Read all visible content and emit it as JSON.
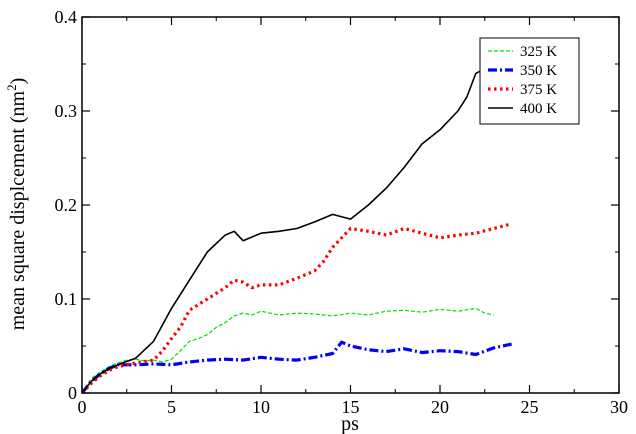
{
  "chart_data": {
    "type": "line",
    "xlabel": "ps",
    "ylabel": "mean square displcement (nm",
    "ylabel_sup": "2",
    "ylabel_close": ")",
    "xlim": [
      0,
      30
    ],
    "ylim": [
      0,
      0.4
    ],
    "x_ticks": [
      0,
      5,
      10,
      15,
      20,
      25,
      30
    ],
    "y_ticks": [
      0,
      0.1,
      0.2,
      0.3,
      0.4
    ],
    "x_tick_labels": [
      "0",
      "5",
      "10",
      "15",
      "20",
      "25",
      "30"
    ],
    "y_tick_labels": [
      "0",
      "0.1",
      "0.2",
      "0.3",
      "0.4"
    ],
    "grid": false,
    "legend_position": "top-right",
    "series": [
      {
        "name": "325 K",
        "color": "#00e000",
        "style": "dashed-thin",
        "x": [
          0,
          0.5,
          1,
          1.5,
          2,
          2.5,
          3,
          3.5,
          4,
          4.5,
          5,
          5.5,
          6,
          6.5,
          7,
          7.5,
          8,
          8.5,
          9,
          9.5,
          10,
          11,
          12,
          13,
          14,
          15,
          16,
          17,
          18,
          19,
          20,
          21,
          22,
          22.5,
          23
        ],
        "y": [
          0,
          0.015,
          0.022,
          0.028,
          0.032,
          0.035,
          0.036,
          0.034,
          0.035,
          0.033,
          0.036,
          0.045,
          0.055,
          0.058,
          0.062,
          0.07,
          0.075,
          0.082,
          0.085,
          0.083,
          0.087,
          0.083,
          0.085,
          0.084,
          0.082,
          0.085,
          0.083,
          0.087,
          0.088,
          0.086,
          0.089,
          0.087,
          0.09,
          0.085,
          0.083
        ]
      },
      {
        "name": "350 K",
        "color": "#0000ff",
        "style": "dashdot-thick",
        "x": [
          0,
          0.5,
          1,
          1.5,
          2,
          3,
          4,
          5,
          6,
          7,
          8,
          9,
          10,
          11,
          12,
          13,
          14,
          14.5,
          15,
          16,
          17,
          18,
          19,
          20,
          21,
          22,
          23,
          24
        ],
        "y": [
          0,
          0.012,
          0.02,
          0.026,
          0.03,
          0.03,
          0.031,
          0.03,
          0.033,
          0.035,
          0.036,
          0.035,
          0.038,
          0.036,
          0.035,
          0.038,
          0.042,
          0.054,
          0.05,
          0.046,
          0.044,
          0.047,
          0.043,
          0.045,
          0.044,
          0.041,
          0.048,
          0.052
        ]
      },
      {
        "name": "375 K",
        "color": "#ff0000",
        "style": "dotted-thick",
        "x": [
          0,
          0.5,
          1,
          1.5,
          2,
          3,
          4,
          4.5,
          5,
          5.5,
          6,
          7,
          8,
          8.5,
          9,
          9.5,
          10,
          11,
          12,
          13,
          13.5,
          14,
          14.5,
          15,
          16,
          17,
          18,
          19,
          20,
          21,
          22,
          23,
          24
        ],
        "y": [
          0,
          0.01,
          0.018,
          0.024,
          0.028,
          0.032,
          0.035,
          0.045,
          0.058,
          0.07,
          0.088,
          0.1,
          0.112,
          0.12,
          0.118,
          0.112,
          0.115,
          0.115,
          0.122,
          0.13,
          0.14,
          0.155,
          0.165,
          0.175,
          0.172,
          0.168,
          0.175,
          0.17,
          0.165,
          0.168,
          0.17,
          0.175,
          0.18
        ]
      },
      {
        "name": "400 K",
        "color": "#000000",
        "style": "solid",
        "x": [
          0,
          0.5,
          1,
          1.5,
          2,
          3,
          4,
          5,
          6,
          7,
          8,
          8.5,
          9,
          10,
          11,
          12,
          13,
          14,
          15,
          16,
          17,
          18,
          19,
          20,
          21,
          21.5,
          22,
          22.5,
          23
        ],
        "y": [
          0,
          0.012,
          0.02,
          0.026,
          0.03,
          0.037,
          0.055,
          0.09,
          0.12,
          0.15,
          0.168,
          0.172,
          0.162,
          0.17,
          0.172,
          0.175,
          0.182,
          0.19,
          0.185,
          0.2,
          0.218,
          0.24,
          0.265,
          0.28,
          0.3,
          0.315,
          0.34,
          0.345,
          0.325
        ]
      }
    ]
  }
}
